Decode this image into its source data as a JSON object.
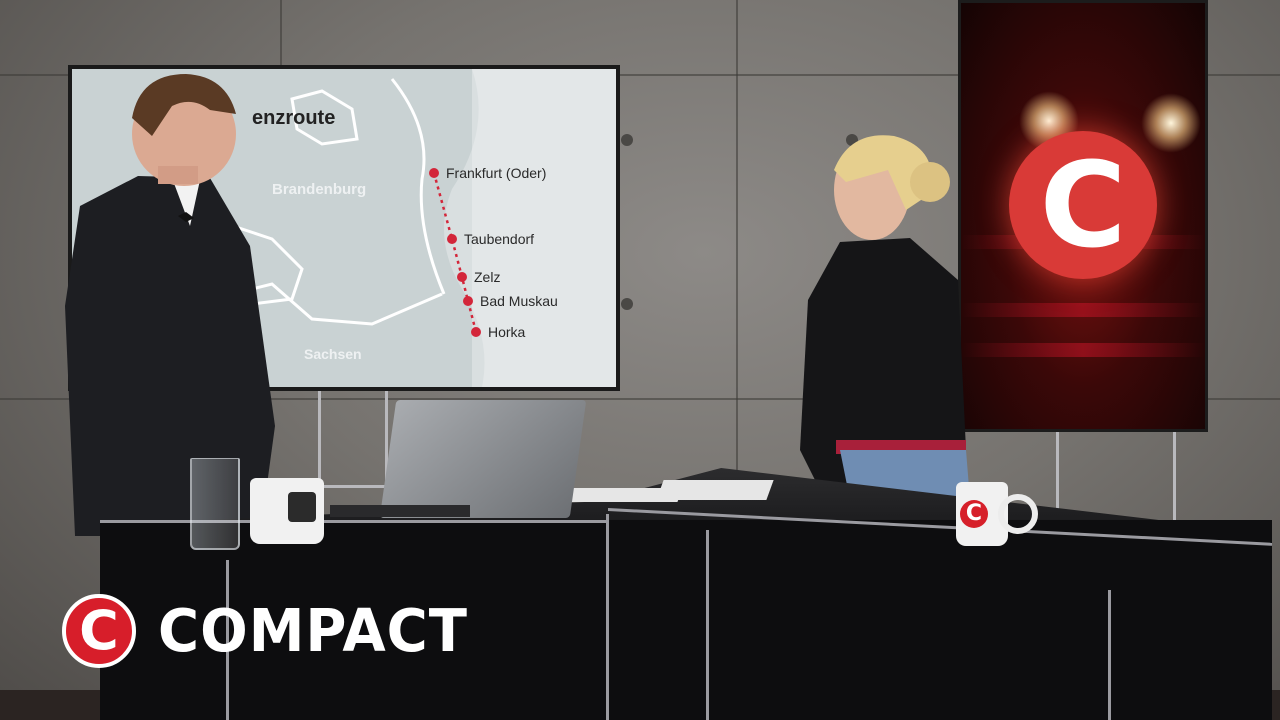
{
  "map": {
    "title": "enzroute",
    "regions": {
      "brandenburg": "Brandenburg",
      "sachsen": "Sachsen"
    },
    "stops": [
      "Frankfurt (Oder)",
      "Taubendorf",
      "Zelz",
      "Bad Muskau",
      "Horka"
    ],
    "route_color": "#d3263a"
  },
  "studio": {
    "screen_logo": "C",
    "mug_logo": "C"
  },
  "brand": {
    "logo_letter": "C",
    "name": "COMPACT",
    "color": "#d71e2a"
  }
}
